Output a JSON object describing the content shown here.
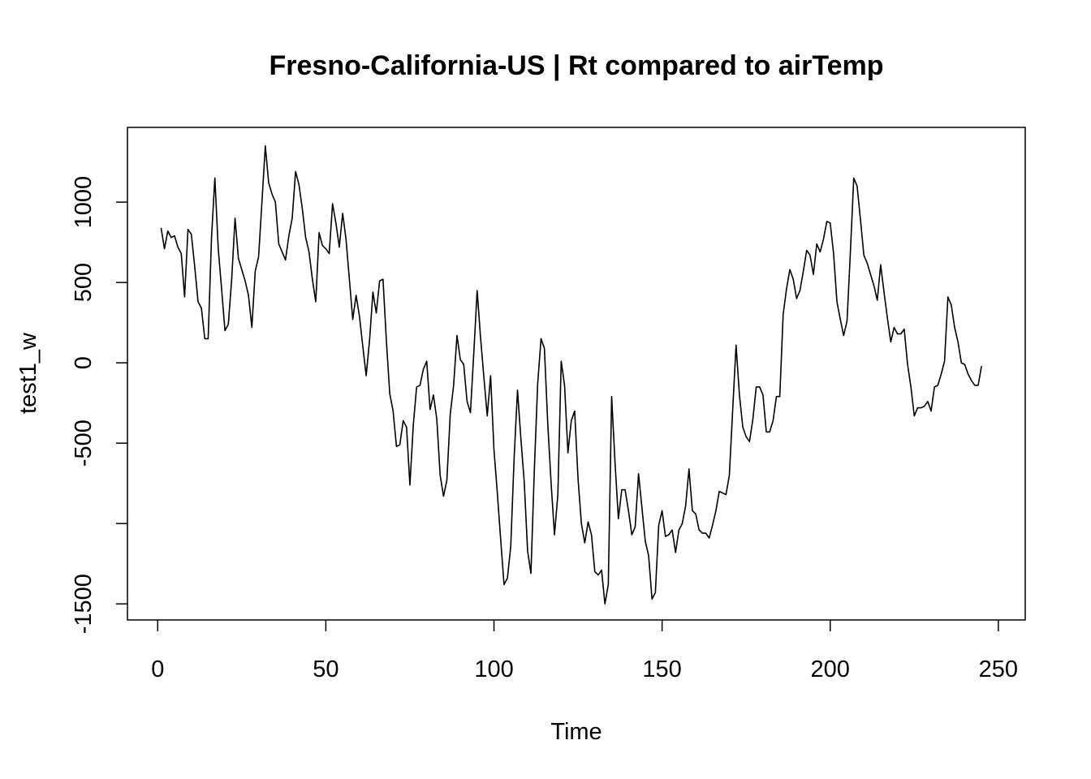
{
  "chart_data": {
    "type": "line",
    "title": "Fresno-California-US | Rt compared to airTemp",
    "xlabel": "Time",
    "ylabel": "test1_w",
    "xlim": [
      -9,
      258
    ],
    "ylim": [
      -1600,
      1465
    ],
    "x_ticks": [
      0,
      50,
      100,
      150,
      200,
      250
    ],
    "x_tick_labels": [
      "0",
      "50",
      "100",
      "150",
      "200",
      "250"
    ],
    "y_ticks": [
      -1500,
      -1000,
      -500,
      0,
      500,
      1000
    ],
    "y_tick_labels": [
      "-1500",
      "",
      "-500",
      "0",
      "500",
      "1000"
    ],
    "grid": false,
    "legend": "none",
    "line_color": "#000000",
    "series": [
      {
        "x_start": 1,
        "x_step": 1,
        "values": [
          840,
          710,
          820,
          780,
          790,
          720,
          680,
          410,
          830,
          800,
          600,
          380,
          340,
          150,
          150,
          780,
          1150,
          710,
          460,
          200,
          240,
          520,
          900,
          650,
          580,
          510,
          420,
          220,
          570,
          660,
          1000,
          1350,
          1120,
          1050,
          1000,
          740,
          690,
          640,
          790,
          900,
          1190,
          1110,
          960,
          780,
          690,
          520,
          380,
          810,
          730,
          710,
          680,
          990,
          870,
          720,
          930,
          770,
          520,
          270,
          420,
          290,
          100,
          -80,
          140,
          440,
          310,
          510,
          520,
          140,
          -190,
          -300,
          -520,
          -510,
          -360,
          -400,
          -760,
          -390,
          -150,
          -140,
          -40,
          10,
          -290,
          -200,
          -350,
          -700,
          -830,
          -730,
          -320,
          -140,
          170,
          20,
          -10,
          -240,
          -310,
          60,
          450,
          160,
          -90,
          -330,
          -80,
          -540,
          -810,
          -1100,
          -1380,
          -1340,
          -1140,
          -590,
          -170,
          -470,
          -740,
          -1170,
          -1310,
          -670,
          -130,
          150,
          90,
          -380,
          -750,
          -1070,
          -820,
          10,
          -140,
          -560,
          -360,
          -300,
          -720,
          -1000,
          -1120,
          -990,
          -1070,
          -1300,
          -1320,
          -1290,
          -1500,
          -1380,
          -210,
          -620,
          -970,
          -790,
          -790,
          -920,
          -1070,
          -1020,
          -690,
          -900,
          -1110,
          -1200,
          -1470,
          -1430,
          -1010,
          -920,
          -1080,
          -1070,
          -1040,
          -1180,
          -1040,
          -1000,
          -890,
          -660,
          -920,
          -940,
          -1040,
          -1060,
          -1060,
          -1090,
          -1010,
          -920,
          -800,
          -810,
          -820,
          -700,
          -290,
          110,
          -200,
          -400,
          -460,
          -490,
          -350,
          -150,
          -150,
          -200,
          -430,
          -430,
          -360,
          -210,
          -210,
          300,
          460,
          580,
          520,
          400,
          450,
          570,
          700,
          670,
          550,
          740,
          690,
          770,
          880,
          870,
          680,
          380,
          270,
          170,
          260,
          690,
          1150,
          1100,
          890,
          670,
          620,
          550,
          480,
          390,
          610,
          440,
          280,
          130,
          220,
          180,
          180,
          210,
          -10,
          -150,
          -330,
          -280,
          -280,
          -270,
          -240,
          -300,
          -150,
          -140,
          -70,
          10,
          410,
          360,
          220,
          130,
          0,
          -10,
          -70,
          -110,
          -140,
          -140,
          -20
        ]
      }
    ]
  }
}
